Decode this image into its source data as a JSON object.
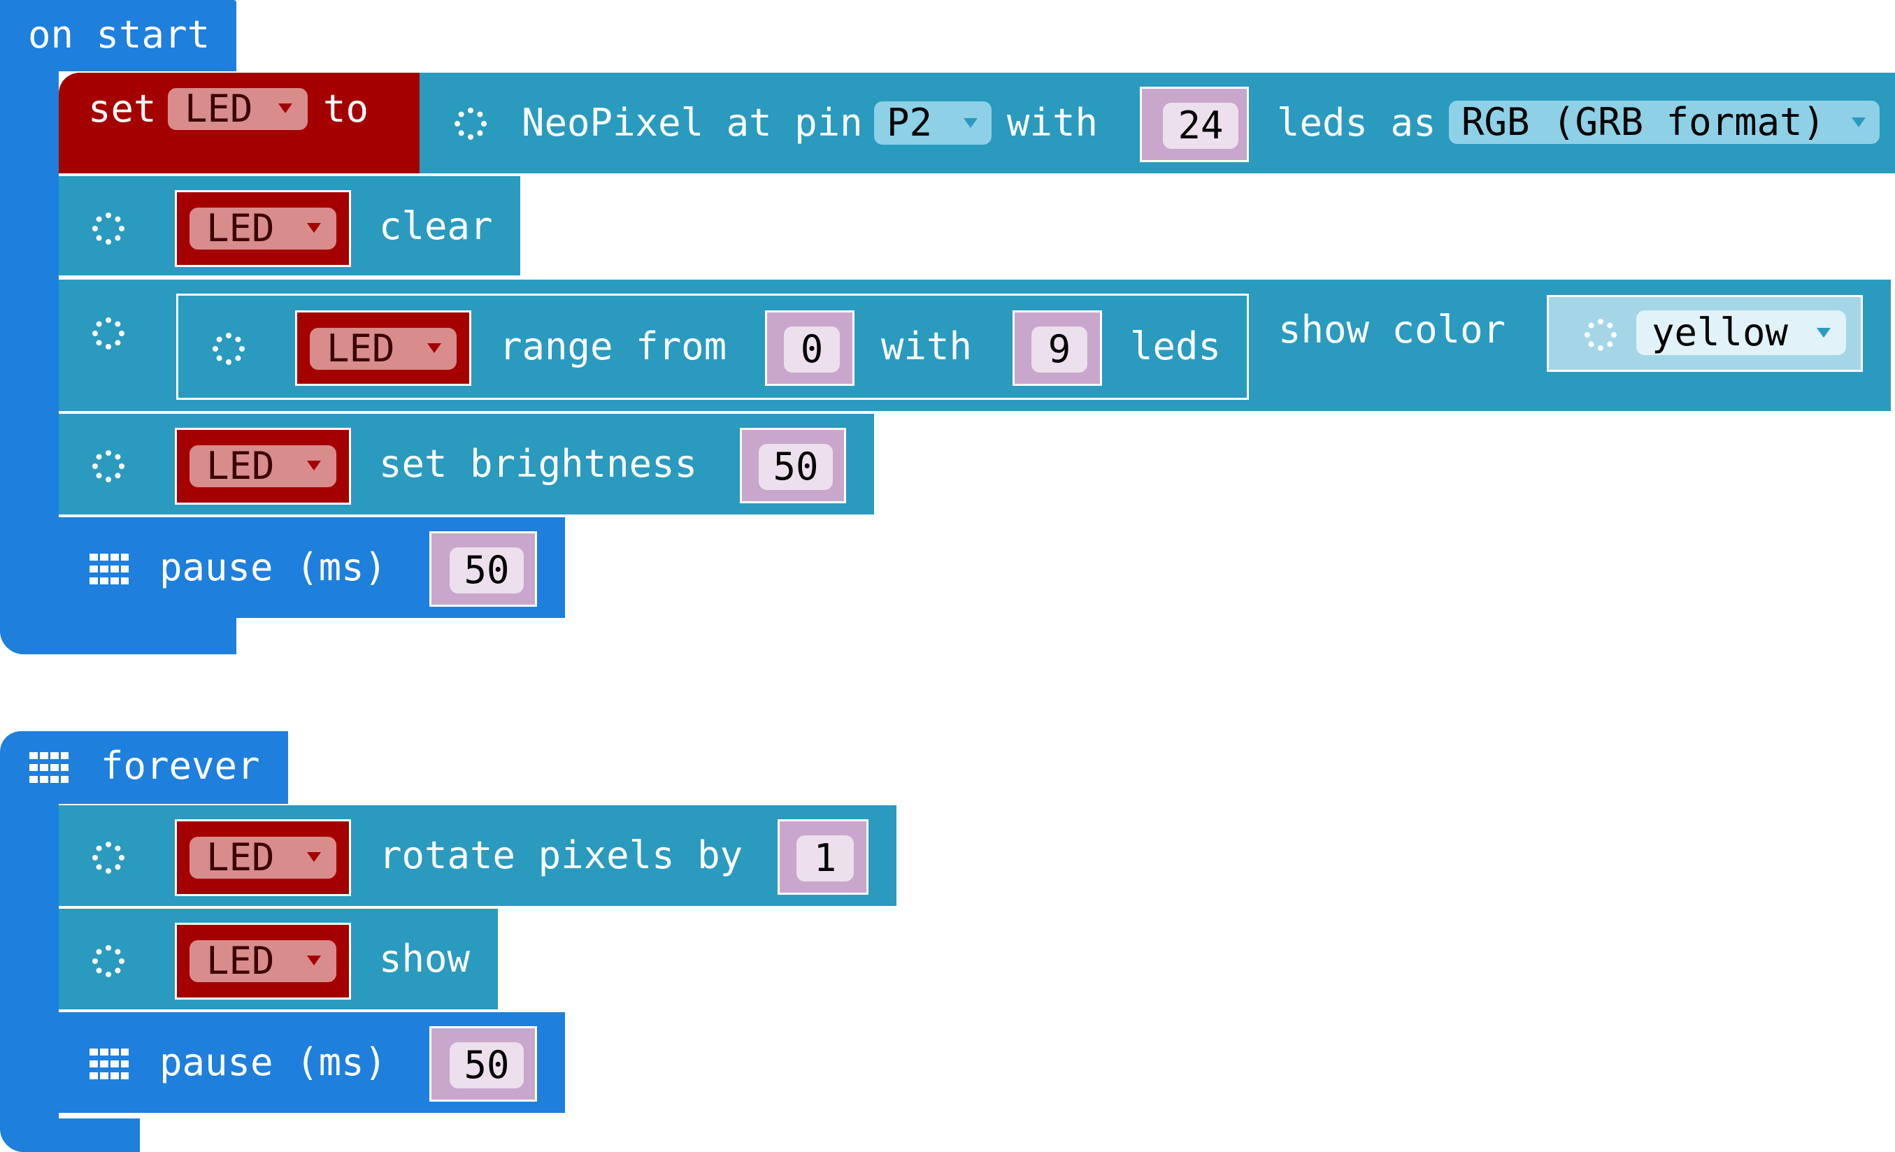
{
  "on_start": {
    "header": "on start",
    "set": {
      "prefix": "set",
      "variable": "LED",
      "suffix": "to"
    },
    "neopixel": {
      "prefix": "NeoPixel at pin",
      "pin": "P2",
      "with": "with",
      "count": "24",
      "leds_as": "leds as",
      "format": "RGB (GRB format)"
    },
    "clear": {
      "variable": "LED",
      "label": "clear"
    },
    "show_color": {
      "label": "show color",
      "range_variable": "LED",
      "range_from": "range from",
      "from_value": "0",
      "with": "with",
      "with_value": "9",
      "leds": "leds",
      "color": "yellow"
    },
    "brightness": {
      "variable": "LED",
      "label": "set brightness",
      "value": "50"
    },
    "pause": {
      "label": "pause (ms)",
      "value": "50"
    }
  },
  "forever": {
    "header": "forever",
    "rotate": {
      "variable": "LED",
      "label": "rotate pixels by",
      "value": "1"
    },
    "show": {
      "variable": "LED",
      "label": "show"
    },
    "pause": {
      "label": "pause (ms)",
      "value": "50"
    }
  },
  "colors": {
    "basic": "#1e7fdc",
    "neopixel": "#2a9abf",
    "variables": "#a50000",
    "number": "#c9a6cc"
  },
  "icons": {
    "neopixel": "ring-icon",
    "basic": "grid-icon",
    "dropdown": "triangle-down-icon"
  }
}
